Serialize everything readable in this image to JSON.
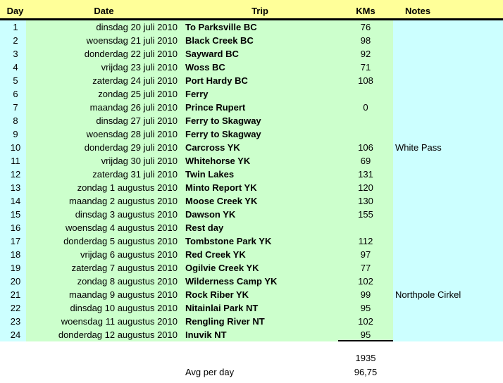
{
  "colors": {
    "header_bg": "#FFFF99",
    "data_bg": "#CCFFCC",
    "sheet_bg": "#CCFFFF",
    "text": "#000000",
    "divider": "#000000"
  },
  "table": {
    "columns": [
      "Day",
      "Date",
      "Trip",
      "KMs",
      "Notes"
    ],
    "rows": [
      {
        "day": "1",
        "date": "dinsdag 20 juli 2010",
        "trip": "To Parksville BC",
        "kms": "76",
        "notes": ""
      },
      {
        "day": "2",
        "date": "woensdag 21 juli 2010",
        "trip": "Black Creek BC",
        "kms": "98",
        "notes": ""
      },
      {
        "day": "3",
        "date": "donderdag 22 juli 2010",
        "trip": "Sayward BC",
        "kms": "92",
        "notes": ""
      },
      {
        "day": "4",
        "date": "vrijdag 23 juli 2010",
        "trip": "Woss BC",
        "kms": "71",
        "notes": ""
      },
      {
        "day": "5",
        "date": "zaterdag 24 juli 2010",
        "trip": "Port Hardy BC",
        "kms": "108",
        "notes": ""
      },
      {
        "day": "6",
        "date": "zondag 25 juli 2010",
        "trip": "Ferry",
        "kms": "",
        "notes": ""
      },
      {
        "day": "7",
        "date": "maandag 26 juli 2010",
        "trip": "Prince Rupert",
        "kms": "0",
        "notes": ""
      },
      {
        "day": "8",
        "date": "dinsdag 27 juli 2010",
        "trip": "Ferry to Skagway",
        "kms": "",
        "notes": ""
      },
      {
        "day": "9",
        "date": "woensdag 28 juli 2010",
        "trip": "Ferry to Skagway",
        "kms": "",
        "notes": ""
      },
      {
        "day": "10",
        "date": "donderdag 29 juli 2010",
        "trip": "Carcross YK",
        "kms": "106",
        "notes": "White Pass"
      },
      {
        "day": "11",
        "date": "vrijdag 30 juli 2010",
        "trip": "Whitehorse YK",
        "kms": "69",
        "notes": ""
      },
      {
        "day": "12",
        "date": "zaterdag 31 juli 2010",
        "trip": "Twin Lakes",
        "kms": "131",
        "notes": ""
      },
      {
        "day": "13",
        "date": "zondag 1 augustus 2010",
        "trip": "Minto Report YK",
        "kms": "120",
        "notes": ""
      },
      {
        "day": "14",
        "date": "maandag 2 augustus 2010",
        "trip": "Moose Creek YK",
        "kms": "130",
        "notes": ""
      },
      {
        "day": "15",
        "date": "dinsdag 3 augustus 2010",
        "trip": "Dawson YK",
        "kms": "155",
        "notes": ""
      },
      {
        "day": "16",
        "date": "woensdag 4 augustus 2010",
        "trip": "Rest day",
        "kms": "",
        "notes": ""
      },
      {
        "day": "17",
        "date": "donderdag 5 augustus 2010",
        "trip": "Tombstone Park YK",
        "kms": "112",
        "notes": ""
      },
      {
        "day": "18",
        "date": "vrijdag 6 augustus 2010",
        "trip": "Red Creek YK",
        "kms": "97",
        "notes": ""
      },
      {
        "day": "19",
        "date": "zaterdag 7 augustus 2010",
        "trip": "Ogilvie Creek YK",
        "kms": "77",
        "notes": ""
      },
      {
        "day": "20",
        "date": "zondag 8 augustus 2010",
        "trip": "Wilderness Camp YK",
        "kms": "102",
        "notes": ""
      },
      {
        "day": "21",
        "date": "maandag 9 augustus 2010",
        "trip": "Rock Riber YK",
        "kms": "99",
        "notes": "Northpole Cirkel"
      },
      {
        "day": "22",
        "date": "dinsdag 10 augustus 2010",
        "trip": "Nitainlai Park NT",
        "kms": "95",
        "notes": ""
      },
      {
        "day": "23",
        "date": "woensdag 11 augustus 2010",
        "trip": "Rengling River NT",
        "kms": "102",
        "notes": ""
      },
      {
        "day": "24",
        "date": "donderdag 12 augustus 2010",
        "trip": "Inuvik NT",
        "kms": "95",
        "notes": ""
      }
    ],
    "summary": {
      "total_kms": "1935",
      "avg_label": "Avg per day",
      "avg_value": "96,75"
    }
  }
}
